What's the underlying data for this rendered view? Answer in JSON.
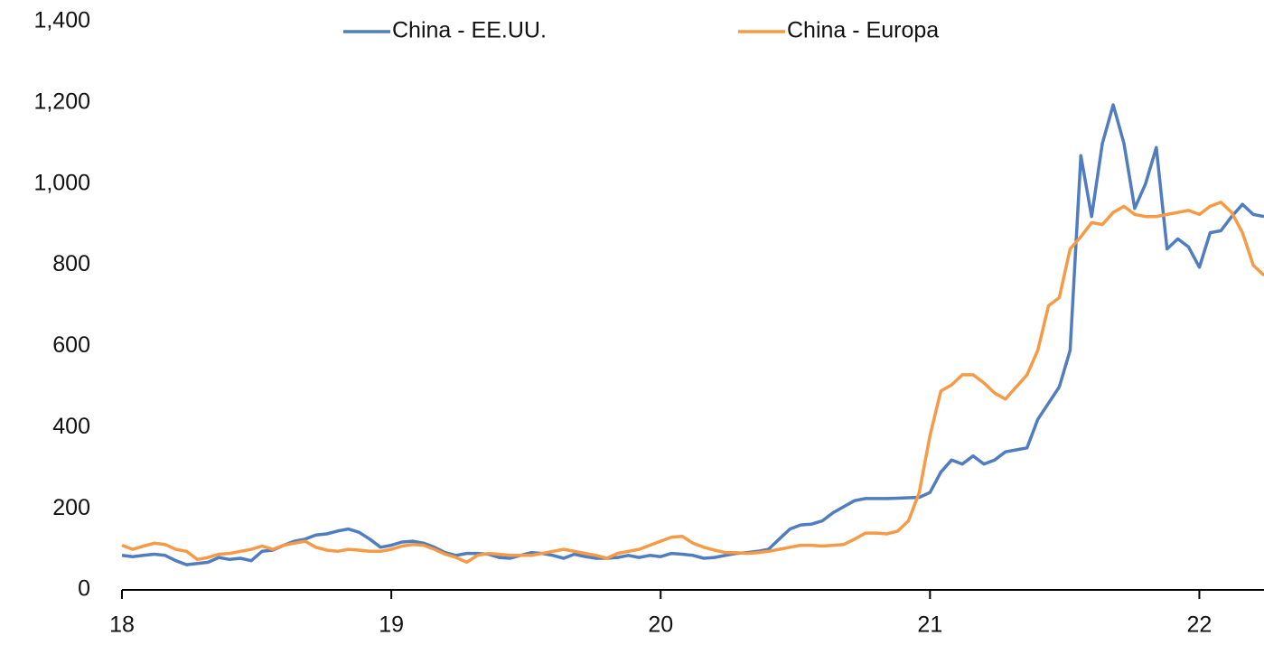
{
  "chart_data": {
    "type": "line",
    "x": [
      18.0,
      18.04,
      18.08,
      18.12,
      18.16,
      18.2,
      18.24,
      18.28,
      18.32,
      18.36,
      18.4,
      18.44,
      18.48,
      18.52,
      18.56,
      18.6,
      18.64,
      18.68,
      18.72,
      18.76,
      18.8,
      18.84,
      18.88,
      18.92,
      18.96,
      19.0,
      19.04,
      19.08,
      19.12,
      19.16,
      19.2,
      19.24,
      19.28,
      19.32,
      19.36,
      19.4,
      19.44,
      19.48,
      19.52,
      19.56,
      19.6,
      19.64,
      19.68,
      19.72,
      19.76,
      19.8,
      19.84,
      19.88,
      19.92,
      19.96,
      20.0,
      20.04,
      20.08,
      20.12,
      20.16,
      20.2,
      20.24,
      20.28,
      20.32,
      20.36,
      20.4,
      20.44,
      20.48,
      20.52,
      20.56,
      20.6,
      20.64,
      20.68,
      20.72,
      20.76,
      20.8,
      20.84,
      20.88,
      20.92,
      20.96,
      21.0,
      21.04,
      21.08,
      21.12,
      21.16,
      21.2,
      21.24,
      21.28,
      21.32,
      21.36,
      21.4,
      21.44,
      21.48,
      21.52,
      21.56,
      21.6,
      21.64,
      21.68,
      21.72,
      21.76,
      21.8,
      21.84,
      21.88,
      21.92,
      21.96,
      22.0,
      22.04,
      22.08,
      22.12,
      22.16,
      22.2,
      22.24
    ],
    "series": [
      {
        "name": "China - EE.UU.",
        "color": "#4f7dbf",
        "values": [
          85,
          82,
          85,
          88,
          85,
          72,
          62,
          65,
          68,
          80,
          75,
          78,
          72,
          95,
          98,
          110,
          120,
          125,
          135,
          138,
          145,
          150,
          142,
          125,
          105,
          110,
          118,
          120,
          115,
          105,
          92,
          85,
          90,
          90,
          88,
          80,
          78,
          85,
          92,
          90,
          85,
          78,
          88,
          82,
          78,
          78,
          80,
          85,
          80,
          85,
          82,
          90,
          88,
          85,
          78,
          80,
          85,
          90,
          92,
          95,
          100,
          125,
          150,
          160,
          162,
          170,
          190,
          205,
          220,
          225,
          225,
          225,
          226,
          227,
          228,
          240,
          290,
          320,
          310,
          330,
          310,
          320,
          340,
          345,
          350,
          420,
          460,
          500,
          590,
          1070,
          920,
          1100,
          1195,
          1100,
          940,
          1000,
          1090,
          840,
          865,
          845,
          795,
          880,
          885,
          920,
          950,
          925,
          920
        ]
      },
      {
        "name": "China - Europa",
        "color": "#f79a46",
        "values": [
          110,
          100,
          108,
          115,
          112,
          100,
          95,
          75,
          80,
          88,
          90,
          95,
          100,
          108,
          100,
          110,
          115,
          120,
          105,
          98,
          95,
          100,
          98,
          95,
          95,
          100,
          108,
          112,
          110,
          100,
          88,
          80,
          68,
          85,
          90,
          88,
          85,
          85,
          85,
          90,
          95,
          100,
          95,
          90,
          85,
          78,
          90,
          95,
          100,
          110,
          120,
          130,
          132,
          115,
          105,
          98,
          92,
          92,
          90,
          92,
          95,
          100,
          105,
          110,
          110,
          108,
          110,
          112,
          125,
          140,
          140,
          138,
          145,
          170,
          240,
          380,
          490,
          505,
          530,
          530,
          510,
          485,
          470,
          500,
          530,
          590,
          700,
          720,
          840,
          870,
          905,
          900,
          930,
          945,
          925,
          920,
          920,
          925,
          930,
          935,
          925,
          945,
          955,
          930,
          880,
          800,
          775
        ]
      }
    ],
    "xlim": [
      18,
      22.24
    ],
    "xticks": [
      18,
      19,
      20,
      21,
      22
    ],
    "ylim": [
      0,
      1400
    ],
    "yticks": [
      0,
      200,
      400,
      600,
      800,
      {
        "value": 1000,
        "label": "1,000"
      },
      {
        "value": 1200,
        "label": "1,200"
      },
      {
        "value": 1400,
        "label": "1,400"
      }
    ],
    "grid": false,
    "legend": "top"
  }
}
